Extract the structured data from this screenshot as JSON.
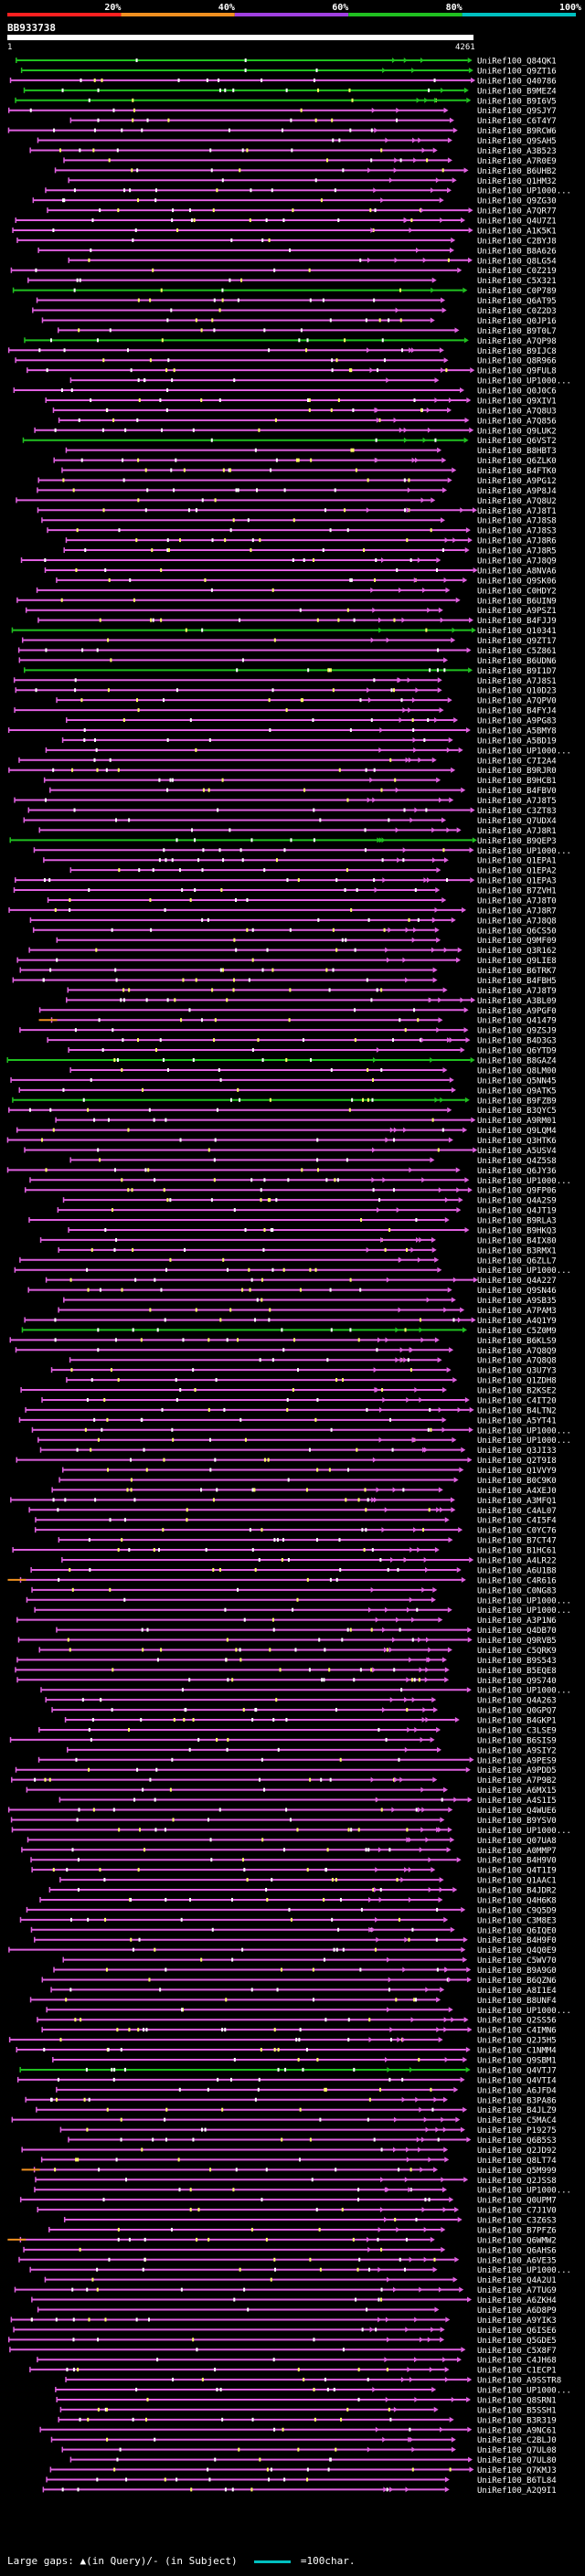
{
  "colors": {
    "background": "#000000",
    "pink": "#e060e0",
    "green": "#20c020",
    "orange": "#f09020",
    "cyan": "#00c0c0",
    "red": "#ff2020",
    "purple": "#a040e0",
    "yellow": "#ffff60",
    "white": "#ffffff"
  },
  "chart_data": {
    "type": "alignment",
    "title": "",
    "query_id": "BB933738",
    "query_range": [
      1,
      4261
    ],
    "scale_labels": [
      "20%",
      "40%",
      "60%",
      "80%",
      "100%"
    ],
    "scale_segments": [
      {
        "from": 0,
        "to": 20,
        "color": "#ff2020"
      },
      {
        "from": 20,
        "to": 40,
        "color": "#f09020"
      },
      {
        "from": 40,
        "to": 60,
        "color": "#a040e0"
      },
      {
        "from": 60,
        "to": 80,
        "color": "#20c020"
      },
      {
        "from": 80,
        "to": 100,
        "color": "#00c0c0"
      }
    ],
    "hits": [
      "UniRef100_Q84QK1",
      "UniRef100_Q9ZT16",
      "UniRef100_Q40786",
      "UniRef100_B9MEZ4",
      "UniRef100_B9I6V5",
      "UniRef100_Q9SJY7",
      "UniRef100_C6T4Y7",
      "UniRef100_B9RCW6",
      "UniRef100_Q9SAH5",
      "UniRef100_A3B523",
      "UniRef100_A7R0E9",
      "UniRef100_B6UHB2",
      "UniRef100_Q1HM32",
      "UniRef100_UP1000...",
      "UniRef100_Q9ZG30",
      "UniRef100_A7QR77",
      "UniRef100_Q4U7Z1",
      "UniRef100_A1K5K1",
      "UniRef100_C2BYJ8",
      "UniRef100_B8A626",
      "UniRef100_Q8LG54",
      "UniRef100_C0Z219",
      "UniRef100_C5X321",
      "UniRef100_C0P789",
      "UniRef100_Q6AT95",
      "UniRef100_C0Z2D3",
      "UniRef100_Q0JP16",
      "UniRef100_B9T0L7",
      "UniRef100_A7QP98",
      "UniRef100_B9IJC8",
      "UniRef100_Q8R966",
      "UniRef100_Q9FUL8",
      "UniRef100_UP1000...",
      "UniRef100_Q0J0C6",
      "UniRef100_Q9XIV1",
      "UniRef100_A7Q8U3",
      "UniRef100_A7Q856",
      "UniRef100_Q9LUK2",
      "UniRef100_Q6VST2",
      "UniRef100_B8HBT3",
      "UniRef100_Q6ZLK0",
      "UniRef100_B4FTK0",
      "UniRef100_A9PG12",
      "UniRef100_A9P8J4",
      "UniRef100_A7Q8U2",
      "UniRef100_A7J8T1",
      "UniRef100_A7J8S8",
      "UniRef100_A7J8S3",
      "UniRef100_A7J8R6",
      "UniRef100_A7J8R5",
      "UniRef100_A7J8Q9",
      "UniRef100_A8NVA6",
      "UniRef100_Q9SK06",
      "UniRef100_C0HDY2",
      "UniRef100_B6UIN9",
      "UniRef100_A9PSZ1",
      "UniRef100_B4FJJ9",
      "UniRef100_Q10341",
      "UniRef100_Q9ZT17",
      "UniRef100_C5Z861",
      "UniRef100_B6UDN6",
      "UniRef100_B9I1D7",
      "UniRef100_A7J8S1",
      "UniRef100_Q10D23",
      "UniRef100_A7QPV0",
      "UniRef100_B4FYJ4",
      "UniRef100_A9PG83",
      "UniRef100_A5BMY8",
      "UniRef100_A5BD19",
      "UniRef100_UP1000...",
      "UniRef100_C7I2A4",
      "UniRef100_B9RJR0",
      "UniRef100_B9HCB1",
      "UniRef100_B4FBV0",
      "UniRef100_A7J8T5",
      "UniRef100_C3ZT83",
      "UniRef100_Q7UDX4",
      "UniRef100_A7J8R1",
      "UniRef100_B9QEP3",
      "UniRef100_UP1000...",
      "UniRef100_Q1EPA1",
      "UniRef100_Q1EPA2",
      "UniRef100_Q1EPA3",
      "UniRef100_B7ZVH1",
      "UniRef100_A7J8T0",
      "UniRef100_A7J8R7",
      "UniRef100_A7J8Q8",
      "UniRef100_Q6CS50",
      "UniRef100_Q9MF09",
      "UniRef100_Q3R162",
      "UniRef100_Q9LIE8",
      "UniRef100_B6TRK7",
      "UniRef100_B4FBH5",
      "UniRef100_A7J8T9",
      "UniRef100_A3BL09",
      "UniRef100_A9PGF0",
      "UniRef100_Q41479",
      "UniRef100_Q9ZSJ9",
      "UniRef100_B4D3G3",
      "UniRef100_Q6YTD9",
      "UniRef100_B8GAZ4",
      "UniRef100_Q8LM00",
      "UniRef100_Q5NN45",
      "UniRef100_Q9ATK5",
      "UniRef100_B9FZB9",
      "UniRef100_B3QYC5",
      "UniRef100_A9RM01",
      "UniRef100_Q9LQM4",
      "UniRef100_Q3HTK6",
      "UniRef100_A5USV4",
      "UniRef100_Q4Z5S8",
      "UniRef100_Q6JY36",
      "UniRef100_UP1000...",
      "UniRef100_Q9FP06",
      "UniRef100_Q4A2S9",
      "UniRef100_Q4JT19",
      "UniRef100_B9RLA3",
      "UniRef100_B9HKQ3",
      "UniRef100_B4IX80",
      "UniRef100_B3RMX1",
      "UniRef100_Q6ZLL7",
      "UniRef100_UP1000...",
      "UniRef100_Q4A227",
      "UniRef100_Q9SN46",
      "UniRef100_A9SB35",
      "UniRef100_A7PAM3",
      "UniRef100_A4Q1Y9",
      "UniRef100_C5Z0M9",
      "UniRef100_B6KLS9",
      "UniRef100_A7Q8Q9",
      "UniRef100_A7Q8Q8",
      "UniRef100_Q3U7Y3",
      "UniRef100_Q1ZDH8",
      "UniRef100_B2KSE2",
      "UniRef100_C4IT20",
      "UniRef100_B4LTN2",
      "UniRef100_A5YT41",
      "UniRef100_UP1000...",
      "UniRef100_UP1000...",
      "UniRef100_Q3JI33",
      "UniRef100_Q2T9I8",
      "UniRef100_Q1VVY9",
      "UniRef100_B0C9K0",
      "UniRef100_A4XEJ0",
      "UniRef100_A3MFQ1",
      "UniRef100_C4AL07",
      "UniRef100_C4I5F4",
      "UniRef100_C0YC76",
      "UniRef100_B7CT47",
      "UniRef100_B1HC61",
      "UniRef100_A4LR22",
      "UniRef100_A6U1B8",
      "UniRef100_C4R616",
      "UniRef100_C0NG83",
      "UniRef100_UP1000...",
      "UniRef100_UP1000...",
      "UniRef100_A3P1N6",
      "UniRef100_Q4DB70",
      "UniRef100_Q9RVB5",
      "UniRef100_C5QRK9",
      "UniRef100_B9S543",
      "UniRef100_B5EQE8",
      "UniRef100_Q9S740",
      "UniRef100_UP1000...",
      "UniRef100_Q4A263",
      "UniRef100_Q0GPQ7",
      "UniRef100_B4GKP1",
      "UniRef100_C3LSE9",
      "UniRef100_B6SIS9",
      "UniRef100_A9SIY2",
      "UniRef100_A9PES9",
      "UniRef100_A9PDD5",
      "UniRef100_A7P9B2",
      "UniRef100_A6MX15",
      "UniRef100_A4S1I5",
      "UniRef100_Q4WUE6",
      "UniRef100_B9YSV0",
      "UniRef100_UP1000...",
      "UniRef100_Q07UA8",
      "UniRef100_A0MMP7",
      "UniRef100_B4H9V0",
      "UniRef100_Q4T1I9",
      "UniRef100_Q1AAC1",
      "UniRef100_B4JDR2",
      "UniRef100_Q4H6K8",
      "UniRef100_C9Q5D9",
      "UniRef100_C3M8E3",
      "UniRef100_Q6IQE0",
      "UniRef100_B4H9F0",
      "UniRef100_Q4Q0E9",
      "UniRef100_C5WV70",
      "UniRef100_B9A9G0",
      "UniRef100_B6QZN6",
      "UniRef100_A8I1E4",
      "UniRef100_B8UNF4",
      "UniRef100_UP1000...",
      "UniRef100_Q2SS56",
      "UniRef100_C4IMN6",
      "UniRef100_Q2J5H5",
      "UniRef100_C1NMM4",
      "UniRef100_Q9SBM1",
      "UniRef100_Q4VTJ7",
      "UniRef100_Q4VTI4",
      "UniRef100_A6JFD4",
      "UniRef100_B3PA86",
      "UniRef100_B4JLZ9",
      "UniRef100_C5MAC4",
      "UniRef100_P19275",
      "UniRef100_Q6B5S3",
      "UniRef100_Q2JD92",
      "UniRef100_Q8LT74",
      "UniRef100_Q5M999",
      "UniRef100_Q2JSS8",
      "UniRef100_UP1000...",
      "UniRef100_Q0UPM7",
      "UniRef100_C7J1V0",
      "UniRef100_C3Z6S3",
      "UniRef100_B7PFZ6",
      "UniRef100_Q6WMW2",
      "UniRef100_Q6AHS6",
      "UniRef100_A6VE35",
      "UniRef100_UP1000...",
      "UniRef100_Q4A2U1",
      "UniRef100_A7TUG9",
      "UniRef100_A6ZKH4",
      "UniRef100_A6D8P9",
      "UniRef100_A9YIK3",
      "UniRef100_Q6ISE6",
      "UniRef100_Q5GDE5",
      "UniRef100_C5X8F7",
      "UniRef100_C4JH68",
      "UniRef100_C1ECP1",
      "UniRef100_A9SSTR8",
      "UniRef100_UP1000...",
      "UniRef100_Q8SRN1",
      "UniRef100_B5SSH1",
      "UniRef100_B3R319",
      "UniRef100_A9NC61",
      "UniRef100_C2BLJ0",
      "UniRef100_Q7UL08",
      "UniRef100_Q7UL80",
      "UniRef100_Q7KMJ3",
      "UniRef100_B6TL84",
      "UniRef100_A2Q9I1"
    ],
    "footer": {
      "gaps_text": "Large gaps: ▲(in Query)/- (in Subject)",
      "scale_text": "=100char."
    }
  }
}
